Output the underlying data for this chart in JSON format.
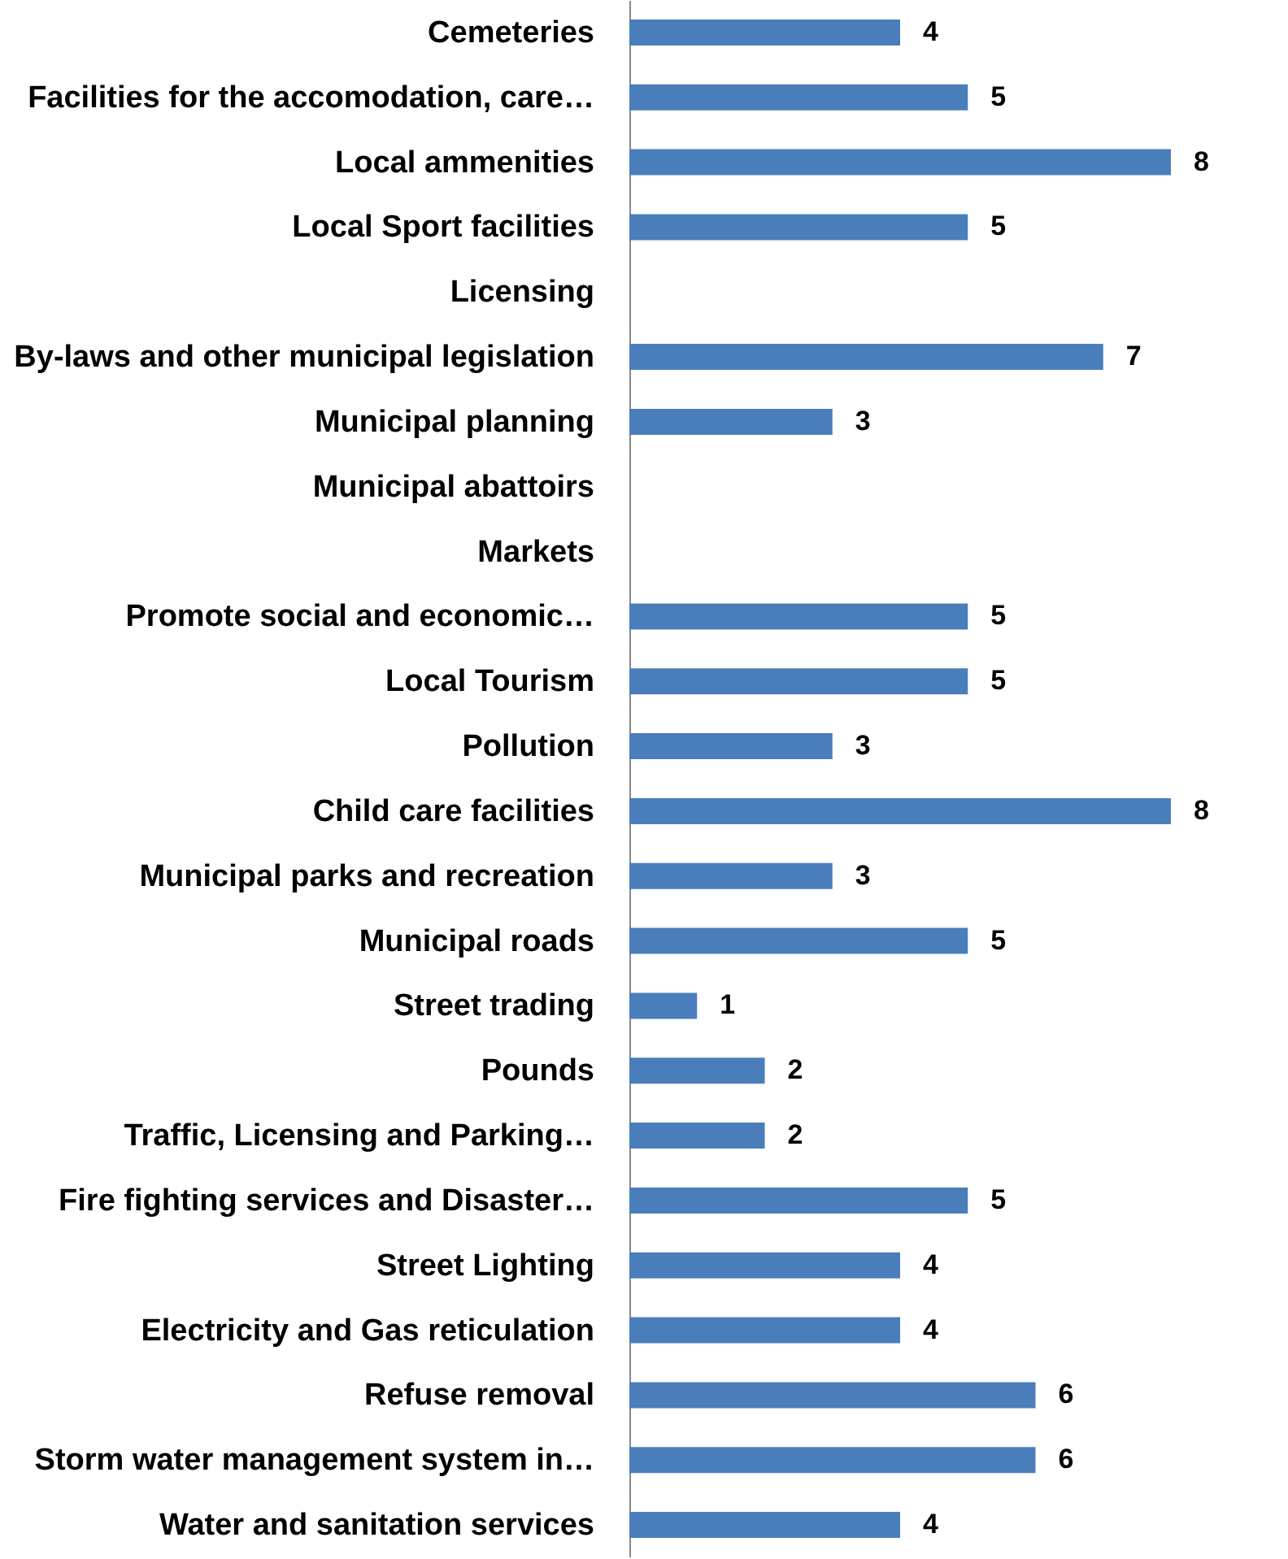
{
  "chart_data": {
    "type": "bar",
    "orientation": "horizontal",
    "data_labels": true,
    "grid": false,
    "categories": [
      "Cemeteries",
      "Facilities for the accomodation, care…",
      "Local ammenities",
      "Local Sport facilities",
      "Licensing",
      "By-laws and other municipal legislation",
      "Municipal planning",
      "Municipal abattoirs",
      "Markets",
      "Promote social and economic…",
      "Local Tourism",
      "Pollution",
      "Child care facilities",
      "Municipal parks and recreation",
      "Municipal roads",
      "Street trading",
      "Pounds",
      "Traffic, Licensing and Parking…",
      "Fire fighting services and Disaster…",
      "Street Lighting",
      "Electricity and Gas reticulation",
      "Refuse removal",
      "Storm water management system in…",
      "Water and sanitation services"
    ],
    "values": [
      4,
      5,
      8,
      5,
      null,
      7,
      3,
      null,
      null,
      5,
      5,
      3,
      8,
      3,
      5,
      1,
      2,
      2,
      5,
      4,
      4,
      6,
      6,
      4
    ],
    "color": "#4a7ebb"
  }
}
